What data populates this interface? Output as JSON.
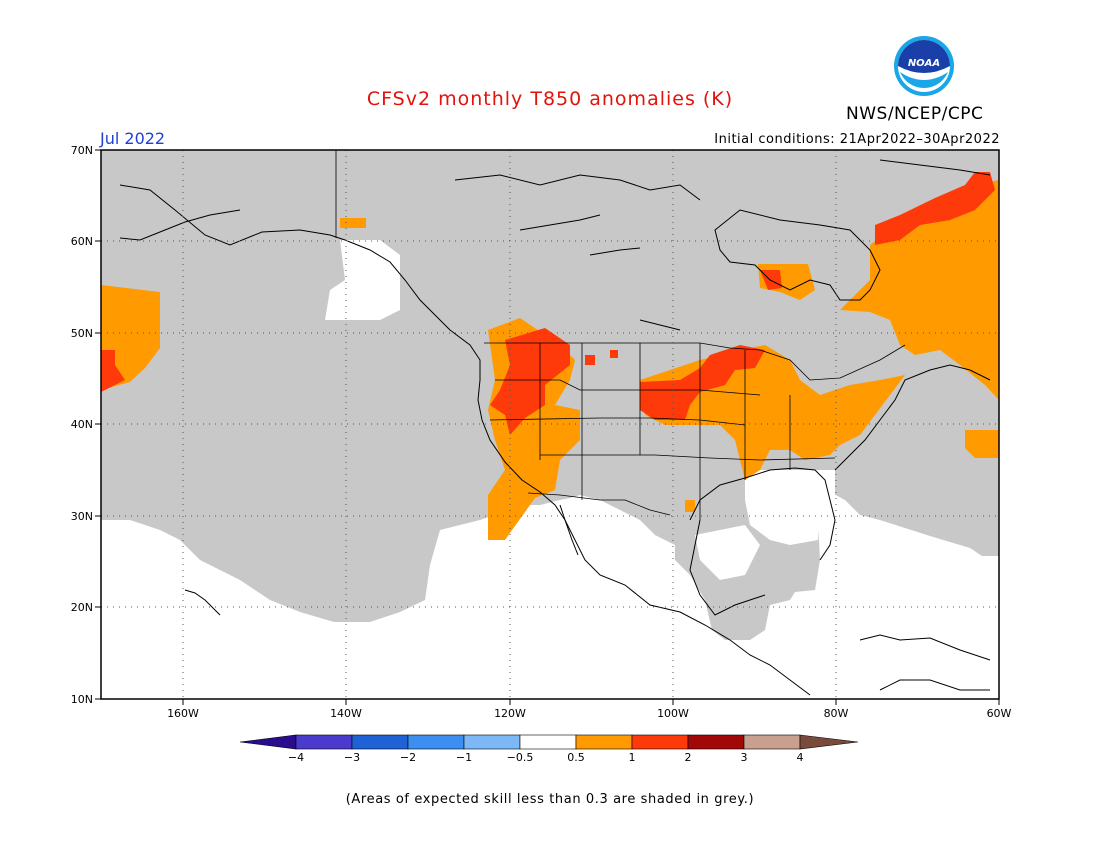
{
  "title": "CFSv2 monthly T850 anomalies (K)",
  "organization": "NWS/NCEP/CPC",
  "logo_text": "NOAA",
  "valid_month": "Jul 2022",
  "initial_conditions": "Initial conditions: 21Apr2022–30Apr2022",
  "footer_note": "(Areas of expected skill less than 0.3 are shaded in grey.)",
  "map": {
    "lat_labels": [
      "70N",
      "60N",
      "50N",
      "40N",
      "30N",
      "20N",
      "10N"
    ],
    "lon_labels": [
      "160W",
      "140W",
      "120W",
      "100W",
      "80W",
      "60W"
    ],
    "grey_color": "#c8c8c8",
    "land_line_color": "#000000"
  },
  "colorbar": {
    "tick_labels": [
      "−4",
      "−3",
      "−2",
      "−1",
      "−0.5",
      "0.5",
      "1",
      "2",
      "3",
      "4"
    ],
    "colors": [
      "#2a0d8e",
      "#4b3bcc",
      "#1f62d6",
      "#3c8ff0",
      "#7cb8f5",
      "#ffffff",
      "#ff9a00",
      "#ff3a0a",
      "#a30808",
      "#c8a08e",
      "#7a4a3c"
    ]
  },
  "anomaly_regions": [
    {
      "name": "Pacific NW interior warm",
      "category": "1 to 2",
      "color": "#ff3a0a"
    },
    {
      "name": "Central Plains warm",
      "category": "1 to 2",
      "color": "#ff3a0a"
    },
    {
      "name": "Great Lakes / Ohio Valley warm",
      "category": "0.5 to 1",
      "color": "#ff9a00"
    },
    {
      "name": "Eastern Canada warm",
      "category": "0.5 to 1",
      "color": "#ff9a00"
    },
    {
      "name": "Greenland coast warm",
      "category": "1 to 2",
      "color": "#ff3a0a"
    },
    {
      "name": "NE Pacific warm",
      "category": "0.5 to 1",
      "color": "#ff9a00"
    }
  ]
}
